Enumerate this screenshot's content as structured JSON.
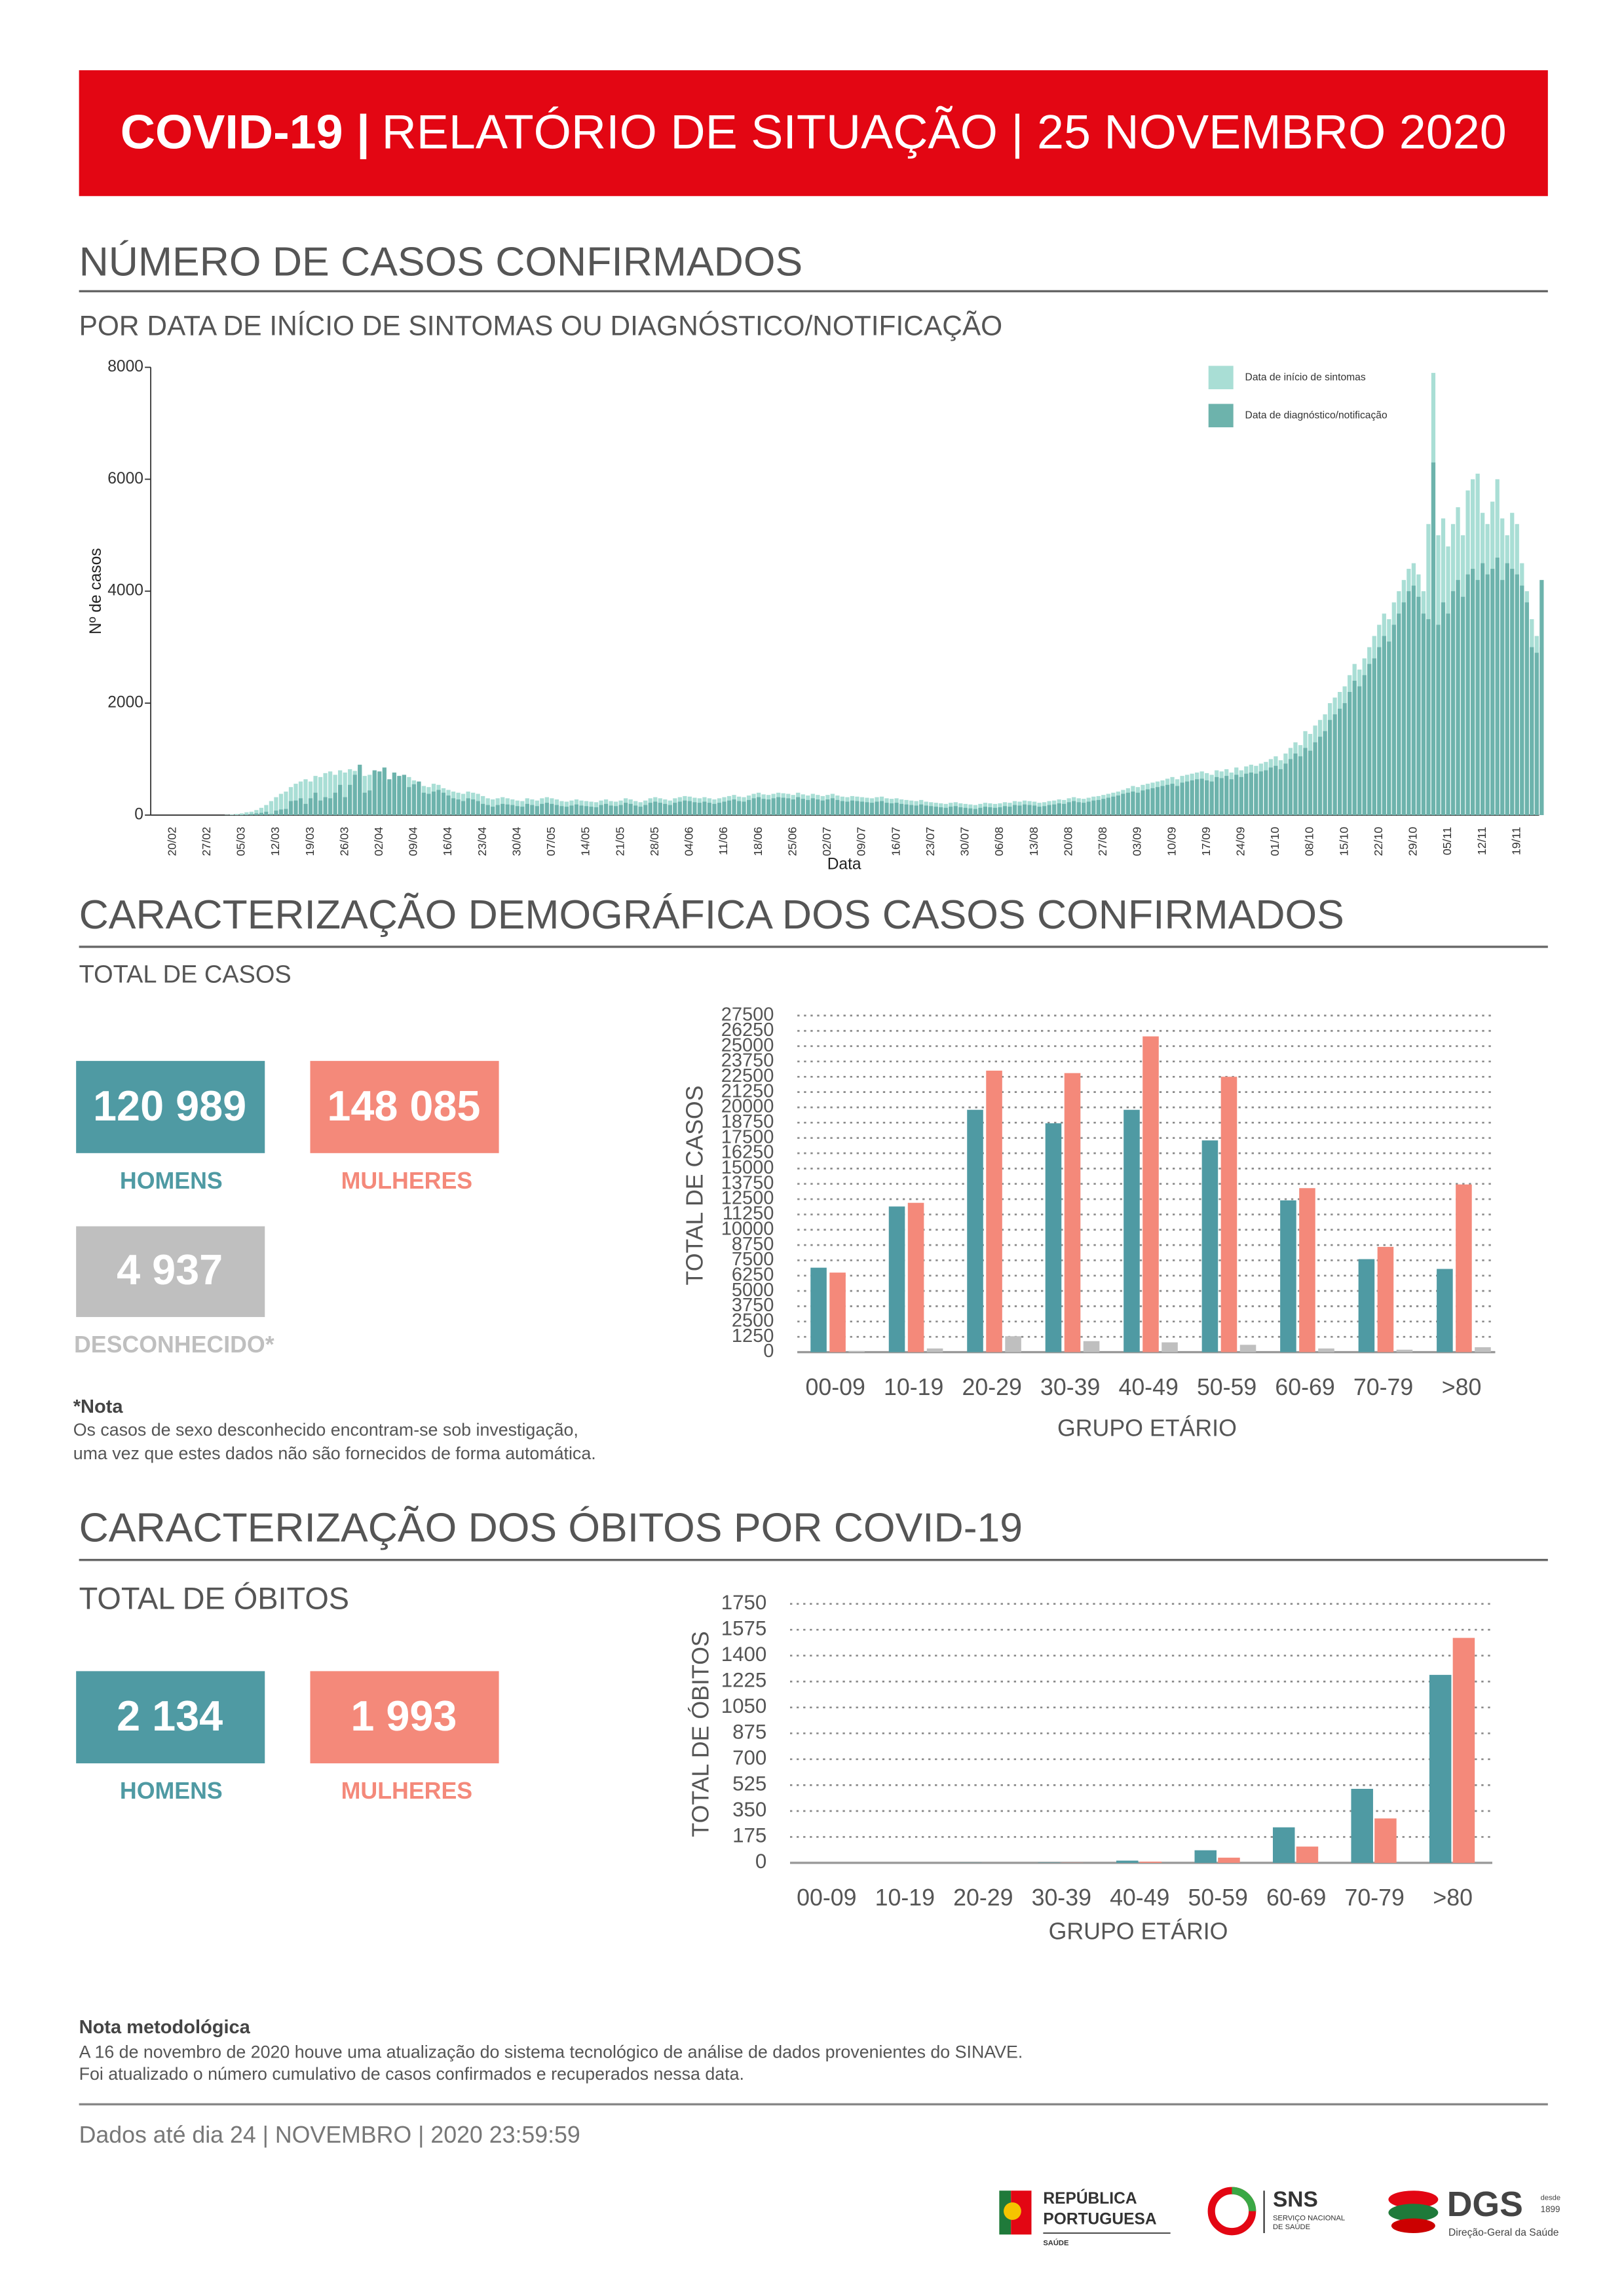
{
  "header": {
    "title_bold": "COVID-19 |",
    "title": "RELATÓRIO DE SITUAÇÃO | 25 NOVEMBRO 2020"
  },
  "sections": [
    {
      "title": "NÚMERO DE CASOS CONFIRMADOS",
      "subtitle": "POR DATA DE INÍCIO DE SINTOMAS OU DIAGNÓSTICO/NOTIFICAÇÃO"
    },
    {
      "title": "CARACTERIZAÇÃO DEMOGRÁFICA DOS CASOS CONFIRMADOS",
      "subtitle": "TOTAL DE CASOS"
    },
    {
      "title": "CARACTERIZAÇÃO DOS ÓBITOS POR COVID-19",
      "subtitle": "TOTAL DE ÓBITOS"
    }
  ],
  "cases_totals": [
    {
      "value": "120 989",
      "label": "HOMENS"
    },
    {
      "value": "148 085",
      "label": "MULHERES"
    },
    {
      "value": "4 937",
      "label": "DESCONHECIDO*"
    }
  ],
  "cases_note": {
    "title": "*Nota",
    "lines": [
      "Os casos de sexo desconhecido encontram-se sob investigação,",
      "uma vez que estes dados não são fornecidos de forma automática."
    ]
  },
  "deaths_totals": [
    {
      "value": "2 134",
      "label": "HOMENS"
    },
    {
      "value": "1 993",
      "label": "MULHERES"
    }
  ],
  "method_note": {
    "title": "Nota metodológica",
    "lines": [
      "A 16 de novembro de 2020 houve uma atualização do sistema tecnológico de análise de dados provenientes do SINAVE.",
      "Foi atualizado o número cumulativo de casos confirmados e recuperados nessa data."
    ]
  },
  "footer": {
    "date": "Dados até dia 24 | NOVEMBRO | 2020 23:59:59",
    "logos": {
      "republica": [
        "REPÚBLICA",
        "PORTUGUESA",
        "SAÚDE"
      ],
      "sns": [
        "SNS",
        "SERVIÇO NACIONAL",
        "DE SAÚDE"
      ],
      "dgs": [
        "DGS",
        "desde",
        "1899",
        "Direção-Geral da Saúde"
      ]
    }
  },
  "chart_data": [
    {
      "type": "bar",
      "bar_mode": "overlay",
      "xlabel": "Data",
      "ylabel": "Nº de casos",
      "legend": "top-right",
      "ylim": [
        0,
        8000
      ],
      "yticks": [
        0,
        2000,
        4000,
        6000,
        8000
      ],
      "categories": [
        "20/02",
        null,
        null,
        null,
        null,
        null,
        null,
        "27/02",
        null,
        null,
        null,
        null,
        null,
        null,
        "05/03",
        null,
        null,
        null,
        null,
        null,
        null,
        "12/03",
        null,
        null,
        null,
        null,
        null,
        null,
        "19/03",
        null,
        null,
        null,
        null,
        null,
        null,
        "26/03",
        null,
        null,
        null,
        null,
        null,
        null,
        "02/04",
        null,
        null,
        null,
        null,
        null,
        null,
        "09/04",
        null,
        null,
        null,
        null,
        null,
        null,
        "16/04",
        null,
        null,
        null,
        null,
        null,
        null,
        "23/04",
        null,
        null,
        null,
        null,
        null,
        null,
        "30/04",
        null,
        null,
        null,
        null,
        null,
        null,
        "07/05",
        null,
        null,
        null,
        null,
        null,
        null,
        "14/05",
        null,
        null,
        null,
        null,
        null,
        null,
        "21/05",
        null,
        null,
        null,
        null,
        null,
        null,
        "28/05",
        null,
        null,
        null,
        null,
        null,
        null,
        "04/06",
        null,
        null,
        null,
        null,
        null,
        null,
        "11/06",
        null,
        null,
        null,
        null,
        null,
        null,
        "18/06",
        null,
        null,
        null,
        null,
        null,
        null,
        "25/06",
        null,
        null,
        null,
        null,
        null,
        null,
        "02/07",
        null,
        null,
        null,
        null,
        null,
        null,
        "09/07",
        null,
        null,
        null,
        null,
        null,
        null,
        "16/07",
        null,
        null,
        null,
        null,
        null,
        null,
        "23/07",
        null,
        null,
        null,
        null,
        null,
        null,
        "30/07",
        null,
        null,
        null,
        null,
        null,
        null,
        "06/08",
        null,
        null,
        null,
        null,
        null,
        null,
        "13/08",
        null,
        null,
        null,
        null,
        null,
        null,
        "20/08",
        null,
        null,
        null,
        null,
        null,
        null,
        "27/08",
        null,
        null,
        null,
        null,
        null,
        null,
        "03/09",
        null,
        null,
        null,
        null,
        null,
        null,
        "10/09",
        null,
        null,
        null,
        null,
        null,
        null,
        "17/09",
        null,
        null,
        null,
        null,
        null,
        null,
        "24/09",
        null,
        null,
        null,
        null,
        null,
        null,
        "01/10",
        null,
        null,
        null,
        null,
        null,
        null,
        "08/10",
        null,
        null,
        null,
        null,
        null,
        null,
        "15/10",
        null,
        null,
        null,
        null,
        null,
        null,
        "22/10",
        null,
        null,
        null,
        null,
        null,
        null,
        "29/10",
        null,
        null,
        null,
        null,
        null,
        null,
        "05/11",
        null,
        null,
        null,
        null,
        null,
        null,
        "12/11",
        null,
        null,
        null,
        null,
        null,
        null,
        "19/11",
        null,
        null,
        null,
        null,
        null
      ],
      "series": [
        {
          "name": "Data de início de sintomas",
          "color": "#a9ded5",
          "values": [
            0,
            0,
            0,
            0,
            0,
            0,
            0,
            0,
            0,
            0,
            0,
            5,
            10,
            20,
            30,
            50,
            60,
            90,
            130,
            180,
            250,
            320,
            380,
            420,
            500,
            560,
            600,
            640,
            600,
            700,
            680,
            750,
            780,
            720,
            800,
            760,
            820,
            790,
            850,
            700,
            720,
            760,
            650,
            600,
            580,
            620,
            560,
            640,
            680,
            620,
            580,
            520,
            500,
            560,
            540,
            480,
            450,
            420,
            400,
            380,
            420,
            400,
            380,
            340,
            300,
            280,
            300,
            320,
            300,
            280,
            260,
            250,
            300,
            280,
            260,
            300,
            320,
            300,
            280,
            250,
            240,
            260,
            280,
            260,
            250,
            240,
            230,
            260,
            280,
            250,
            240,
            260,
            300,
            280,
            250,
            230,
            260,
            300,
            320,
            300,
            280,
            260,
            300,
            320,
            340,
            330,
            310,
            300,
            320,
            300,
            280,
            300,
            320,
            340,
            360,
            330,
            320,
            350,
            380,
            400,
            370,
            360,
            380,
            400,
            390,
            380,
            360,
            400,
            370,
            350,
            380,
            360,
            340,
            360,
            380,
            350,
            330,
            320,
            340,
            330,
            320,
            310,
            300,
            320,
            330,
            300,
            290,
            300,
            280,
            270,
            260,
            250,
            270,
            240,
            230,
            220,
            210,
            200,
            220,
            230,
            210,
            200,
            190,
            180,
            200,
            220,
            210,
            200,
            210,
            230,
            220,
            250,
            240,
            260,
            250,
            240,
            220,
            230,
            250,
            260,
            280,
            270,
            300,
            320,
            300,
            290,
            310,
            330,
            340,
            360,
            380,
            400,
            420,
            450,
            480,
            520,
            500,
            540,
            560,
            580,
            600,
            620,
            650,
            680,
            640,
            700,
            720,
            740,
            760,
            780,
            750,
            720,
            800,
            780,
            820,
            760,
            850,
            800,
            870,
            900,
            880,
            920,
            950,
            1000,
            1050,
            980,
            1100,
            1200,
            1300,
            1250,
            1500,
            1450,
            1600,
            1700,
            1800,
            2000,
            2100,
            2200,
            2300,
            2500,
            2700,
            2600,
            2800,
            3000,
            3200,
            3400,
            3600,
            3500,
            3800,
            4000,
            4200,
            4400,
            4500,
            4300,
            4000,
            5200,
            7900,
            5000,
            5300,
            4800,
            5200,
            5500,
            5000,
            5800,
            6000,
            6100,
            5400,
            5200,
            5600,
            6000,
            5300,
            5000,
            5400,
            5200,
            4500,
            4000,
            3500,
            3200,
            3000
          ]
        },
        {
          "name": "Data de diagnóstico/notificação",
          "color": "#6db3ac",
          "values": [
            0,
            0,
            0,
            0,
            0,
            0,
            0,
            0,
            0,
            0,
            0,
            0,
            2,
            2,
            5,
            10,
            20,
            30,
            40,
            60,
            20,
            80,
            100,
            110,
            250,
            260,
            300,
            200,
            300,
            400,
            260,
            320,
            300,
            400,
            540,
            320,
            540,
            720,
            900,
            400,
            440,
            800,
            780,
            850,
            640,
            760,
            700,
            720,
            500,
            550,
            600,
            400,
            380,
            420,
            450,
            400,
            350,
            300,
            280,
            250,
            300,
            280,
            250,
            200,
            180,
            150,
            180,
            200,
            190,
            180,
            160,
            150,
            200,
            180,
            160,
            200,
            220,
            200,
            180,
            160,
            150,
            170,
            190,
            170,
            160,
            150,
            140,
            180,
            200,
            170,
            160,
            180,
            220,
            200,
            170,
            150,
            180,
            220,
            240,
            220,
            200,
            180,
            220,
            240,
            260,
            250,
            230,
            220,
            240,
            220,
            200,
            220,
            240,
            260,
            280,
            250,
            240,
            270,
            300,
            320,
            290,
            280,
            300,
            320,
            310,
            300,
            280,
            320,
            290,
            270,
            300,
            280,
            260,
            280,
            300,
            270,
            250,
            240,
            260,
            250,
            240,
            230,
            220,
            240,
            250,
            220,
            210,
            220,
            200,
            190,
            180,
            170,
            190,
            170,
            160,
            150,
            140,
            130,
            150,
            160,
            140,
            130,
            120,
            110,
            130,
            150,
            140,
            130,
            140,
            160,
            150,
            180,
            170,
            190,
            180,
            170,
            150,
            160,
            180,
            190,
            210,
            200,
            230,
            250,
            230,
            220,
            240,
            260,
            270,
            290,
            310,
            330,
            350,
            380,
            400,
            420,
            400,
            440,
            460,
            480,
            500,
            520,
            540,
            560,
            520,
            580,
            600,
            620,
            640,
            650,
            620,
            600,
            680,
            660,
            700,
            640,
            720,
            680,
            740,
            760,
            740,
            780,
            800,
            850,
            880,
            820,
            920,
            1000,
            1100,
            1050,
            1200,
            1150,
            1300,
            1400,
            1500,
            1700,
            1800,
            1900,
            2000,
            2200,
            2400,
            2300,
            2500,
            2700,
            2800,
            3000,
            3200,
            3100,
            3400,
            3600,
            3800,
            4000,
            4100,
            3900,
            3600,
            3500,
            6300,
            3400,
            3800,
            3600,
            4000,
            4200,
            3900,
            4300,
            4400,
            4200,
            4500,
            4300,
            4400,
            4600,
            4200,
            4500,
            4400,
            4300,
            4100,
            3800,
            3000,
            2900,
            4200
          ]
        }
      ]
    },
    {
      "type": "bar",
      "bar_mode": "grouped",
      "xlabel": "GRUPO ETÁRIO",
      "ylabel": "TOTAL DE CASOS",
      "grid": true,
      "ylim": [
        0,
        27500
      ],
      "yticks": [
        0,
        1250,
        2500,
        3750,
        5000,
        6250,
        7500,
        8750,
        10000,
        11250,
        12500,
        13750,
        15000,
        16250,
        17500,
        18750,
        20000,
        21250,
        22500,
        23750,
        25000,
        26250,
        27500
      ],
      "categories": [
        "00-09",
        "10-19",
        "20-29",
        "30-39",
        "40-49",
        "50-59",
        "60-69",
        "70-79",
        ">80"
      ],
      "series": [
        {
          "color": "#4f9aa3",
          "values": [
            6900,
            11900,
            19800,
            18700,
            19800,
            17300,
            12400,
            7600,
            6800
          ]
        },
        {
          "color": "#f4897a",
          "values": [
            6500,
            12200,
            23000,
            22800,
            25800,
            22500,
            13400,
            8600,
            13700
          ]
        },
        {
          "color": "#bfbfbf",
          "values": [
            100,
            300,
            1300,
            900,
            800,
            600,
            300,
            200,
            400
          ]
        }
      ]
    },
    {
      "type": "bar",
      "bar_mode": "grouped",
      "xlabel": "GRUPO ETÁRIO",
      "ylabel": "TOTAL DE ÓBITOS",
      "grid": true,
      "ylim": [
        0,
        1750
      ],
      "yticks": [
        0,
        175,
        350,
        525,
        700,
        875,
        1050,
        1225,
        1400,
        1575,
        1750
      ],
      "categories": [
        "00-09",
        "10-19",
        "20-29",
        "30-39",
        "40-49",
        "50-59",
        "60-69",
        "70-79",
        ">80"
      ],
      "series": [
        {
          "color": "#4f9aa3",
          "values": [
            0,
            0,
            1,
            2,
            15,
            85,
            240,
            500,
            1270
          ]
        },
        {
          "color": "#f4897a",
          "values": [
            0,
            0,
            0,
            1,
            8,
            35,
            110,
            300,
            1520
          ]
        }
      ]
    }
  ]
}
